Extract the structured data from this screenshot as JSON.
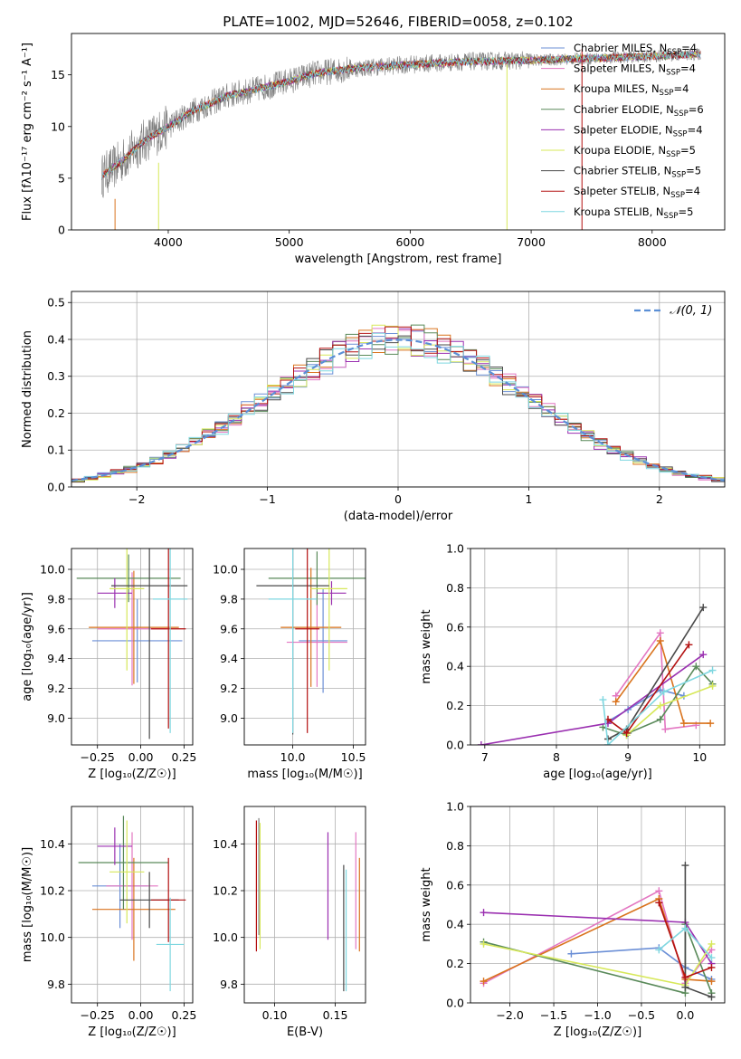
{
  "figure": {
    "title": "PLATE=1002, MJD=52646, FIBERID=0058, z=0.102"
  },
  "chart_data": [
    {
      "id": "spectrum",
      "type": "line",
      "xlabel": "wavelength [Angstrom, rest frame]",
      "ylabel": "Flux [fλ10⁻¹⁷ erg cm⁻² s⁻¹ A⁻¹]",
      "xlim": [
        3200,
        8600
      ],
      "ylim": [
        0,
        19
      ],
      "xticks": [
        4000,
        5000,
        6000,
        7000,
        8000
      ],
      "yticks": [
        0,
        5,
        10,
        15
      ],
      "grid": false,
      "legend_position": "top-right",
      "data_series": {
        "name": "data",
        "color": "#808080"
      },
      "continuum": {
        "x": [
          3450,
          3600,
          3800,
          4000,
          4200,
          4500,
          4800,
          5000,
          5200,
          5500,
          6000,
          6500,
          7000,
          7500,
          8000,
          8400
        ],
        "y": [
          5.2,
          6.5,
          8.6,
          10.0,
          11.5,
          13.0,
          13.8,
          14.4,
          15.1,
          15.6,
          16.0,
          16.3,
          16.4,
          16.6,
          16.8,
          17.0
        ]
      },
      "series": [
        {
          "name": "Chabrier MILES, N",
          "sub": "SSP",
          "suffix": "=4",
          "color": "#6b8fd6"
        },
        {
          "name": "Salpeter MILES, N",
          "sub": "SSP",
          "suffix": "=4",
          "color": "#e377c2"
        },
        {
          "name": "Kroupa MILES, N",
          "sub": "SSP",
          "suffix": "=4",
          "color": "#d9731d"
        },
        {
          "name": "Chabrier ELODIE, N",
          "sub": "SSP",
          "suffix": "=6",
          "color": "#5a8a5a"
        },
        {
          "name": "Salpeter ELODIE, N",
          "sub": "SSP",
          "suffix": "=4",
          "color": "#9a2fb0"
        },
        {
          "name": "Kroupa ELODIE, N",
          "sub": "SSP",
          "suffix": "=5",
          "color": "#d7e85a"
        },
        {
          "name": "Chabrier STELIB, N",
          "sub": "SSP",
          "suffix": "=5",
          "color": "#4a4a4a"
        },
        {
          "name": "Salpeter STELIB, N",
          "sub": "SSP",
          "suffix": "=4",
          "color": "#b31010"
        },
        {
          "name": "Kroupa STELIB, N",
          "sub": "SSP",
          "suffix": "=5",
          "color": "#7fd7e0"
        }
      ],
      "spikes": [
        {
          "x": 3920,
          "y0": 0,
          "y1": 6.5,
          "color": "#d7e85a"
        },
        {
          "x": 6800,
          "y0": 0,
          "y1": 16,
          "color": "#d7e85a"
        },
        {
          "x": 7420,
          "y0": 0,
          "y1": 17.5,
          "color": "#b31010"
        },
        {
          "x": 3560,
          "y0": 0,
          "y1": 3,
          "color": "#d9731d"
        }
      ]
    },
    {
      "id": "residuals",
      "type": "step",
      "xlabel": "(data-model)/error",
      "ylabel": "Normed distribution",
      "xlim": [
        -2.5,
        2.5
      ],
      "ylim": [
        0,
        0.53
      ],
      "xticks": [
        -2,
        -1,
        0,
        1,
        2
      ],
      "yticks": [
        0.0,
        0.1,
        0.2,
        0.3,
        0.4,
        0.5
      ],
      "grid": true,
      "legend_position": "top-right",
      "normal_curve": {
        "label": "𝒩(0, 1)",
        "color": "#5b8fd6"
      },
      "hist_colors": [
        "#6b8fd6",
        "#e377c2",
        "#d9731d",
        "#5a8a5a",
        "#9a2fb0",
        "#d7e85a",
        "#4a4a4a",
        "#b31010",
        "#7fd7e0"
      ],
      "bins": 50
    },
    {
      "id": "age-vs-Z",
      "type": "errorbar",
      "xlabel": "Z [log₁₀(Z/Z☉)]",
      "ylabel": "age  [log₁₀(age/yr)]",
      "xlim": [
        -0.4,
        0.3
      ],
      "ylim": [
        8.82,
        10.14
      ],
      "xticks": [
        -0.25,
        0.0,
        0.25
      ],
      "xticklabels": [
        "−0.25",
        "0.00",
        "0.25"
      ],
      "yticks": [
        9.0,
        9.2,
        9.4,
        9.6,
        9.8,
        10.0
      ],
      "grid": true,
      "points": [
        {
          "x": -0.02,
          "xerr": 0.26,
          "y": 9.52,
          "yerr": 0.28,
          "color": "#6b8fd6"
        },
        {
          "x": -0.05,
          "xerr": 0.2,
          "y": 9.6,
          "yerr": 0.38,
          "color": "#e377c2"
        },
        {
          "x": -0.04,
          "xerr": 0.26,
          "y": 9.61,
          "yerr": 0.38,
          "color": "#d9731d"
        },
        {
          "x": -0.07,
          "xerr": 0.3,
          "y": 9.94,
          "yerr": 0.16,
          "color": "#5a8a5a"
        },
        {
          "x": -0.15,
          "xerr": 0.1,
          "y": 9.84,
          "yerr": 0.1,
          "color": "#9a2fb0"
        },
        {
          "x": -0.08,
          "xerr": 0.1,
          "y": 9.87,
          "yerr": 0.55,
          "color": "#d7e85a"
        },
        {
          "x": 0.05,
          "xerr": 0.22,
          "y": 9.89,
          "yerr": 1.03,
          "color": "#4a4a4a"
        },
        {
          "x": 0.16,
          "xerr": 0.1,
          "y": 9.6,
          "yerr": 0.67,
          "color": "#b31010"
        },
        {
          "x": 0.17,
          "xerr": 0.1,
          "y": 9.8,
          "yerr": 0.9,
          "color": "#7fd7e0"
        }
      ]
    },
    {
      "id": "age-vs-mass",
      "type": "errorbar",
      "xlabel": "mass [log₁₀(M/M☉)]",
      "ylabel": "",
      "xlim": [
        9.6,
        10.6
      ],
      "ylim": [
        8.82,
        10.14
      ],
      "xticks": [
        10.0,
        10.5
      ],
      "xticklabels": [
        "10.0",
        "10.5"
      ],
      "yticks": [
        9.0,
        9.2,
        9.4,
        9.6,
        9.8,
        10.0
      ],
      "grid": true,
      "points": [
        {
          "x": 10.25,
          "xerr": 0.2,
          "y": 9.52,
          "yerr": 0.35,
          "color": "#6b8fd6"
        },
        {
          "x": 10.2,
          "xerr": 0.25,
          "y": 9.51,
          "yerr": 0.3,
          "color": "#e377c2"
        },
        {
          "x": 10.15,
          "xerr": 0.25,
          "y": 9.61,
          "yerr": 0.4,
          "color": "#d9731d"
        },
        {
          "x": 10.2,
          "xerr": 0.4,
          "y": 9.94,
          "yerr": 0.18,
          "color": "#5a8a5a"
        },
        {
          "x": 10.32,
          "xerr": 0.12,
          "y": 9.84,
          "yerr": 0.08,
          "color": "#9a2fb0"
        },
        {
          "x": 10.3,
          "xerr": 0.15,
          "y": 9.87,
          "yerr": 0.55,
          "color": "#d7e85a"
        },
        {
          "x": 10.0,
          "xerr": 0.3,
          "y": 9.89,
          "yerr": 1.0,
          "color": "#4a4a4a"
        },
        {
          "x": 10.12,
          "xerr": 0.1,
          "y": 9.6,
          "yerr": 0.7,
          "color": "#b31010"
        },
        {
          "x": 10.0,
          "xerr": 0.2,
          "y": 9.8,
          "yerr": 0.9,
          "color": "#7fd7e0"
        }
      ]
    },
    {
      "id": "weight-vs-age",
      "type": "line",
      "xlabel": "age  [log₁₀(age/yr)]",
      "ylabel": "mass weight",
      "xlim": [
        6.8,
        10.35
      ],
      "ylim": [
        0,
        1.0
      ],
      "xticks": [
        7,
        8,
        9,
        10
      ],
      "yticks": [
        0.0,
        0.2,
        0.4,
        0.6,
        0.8,
        1.0
      ],
      "grid": true,
      "series": [
        {
          "color": "#6b8fd6",
          "x": [
            8.72,
            9.0,
            9.45,
            9.78
          ],
          "y": [
            0.12,
            0.18,
            0.28,
            0.25
          ]
        },
        {
          "color": "#e377c2",
          "x": [
            8.83,
            9.45,
            9.52,
            9.95
          ],
          "y": [
            0.25,
            0.57,
            0.08,
            0.1
          ]
        },
        {
          "color": "#d9731d",
          "x": [
            8.83,
            9.45,
            9.78,
            10.15
          ],
          "y": [
            0.22,
            0.53,
            0.11,
            0.11
          ]
        },
        {
          "color": "#5a8a5a",
          "x": [
            8.65,
            8.98,
            9.0,
            9.45,
            9.95,
            10.18
          ],
          "y": [
            0.09,
            0.05,
            0.06,
            0.13,
            0.4,
            0.31
          ]
        },
        {
          "color": "#9a2fb0",
          "x": [
            6.95,
            8.72,
            10.05
          ],
          "y": [
            0.0,
            0.11,
            0.46
          ]
        },
        {
          "color": "#d7e85a",
          "x": [
            8.98,
            9.45,
            10.18
          ],
          "y": [
            0.05,
            0.2,
            0.3
          ]
        },
        {
          "color": "#4a4a4a",
          "x": [
            8.72,
            8.98,
            10.05
          ],
          "y": [
            0.03,
            0.08,
            0.7
          ]
        },
        {
          "color": "#b31010",
          "x": [
            8.72,
            8.98,
            9.85
          ],
          "y": [
            0.13,
            0.06,
            0.51
          ]
        },
        {
          "color": "#7fd7e0",
          "x": [
            8.65,
            8.72,
            9.5,
            10.18
          ],
          "y": [
            0.23,
            0.0,
            0.27,
            0.38
          ]
        }
      ]
    },
    {
      "id": "mass-vs-Z",
      "type": "errorbar",
      "xlabel": "Z [log₁₀(Z/Z☉)]",
      "ylabel": "mass [log₁₀(M/M☉)]",
      "xlim": [
        -0.4,
        0.3
      ],
      "ylim": [
        9.72,
        10.56
      ],
      "xticks": [
        -0.25,
        0.0,
        0.25
      ],
      "xticklabels": [
        "−0.25",
        "0.00",
        "0.25"
      ],
      "yticks": [
        9.8,
        10.0,
        10.2,
        10.4
      ],
      "grid": true,
      "points": [
        {
          "x": -0.12,
          "xerr": 0.16,
          "y": 10.22,
          "yerr": 0.18,
          "color": "#6b8fd6"
        },
        {
          "x": -0.05,
          "xerr": 0.15,
          "y": 10.22,
          "yerr": 0.23,
          "color": "#e377c2"
        },
        {
          "x": -0.04,
          "xerr": 0.24,
          "y": 10.12,
          "yerr": 0.22,
          "color": "#d9731d"
        },
        {
          "x": -0.1,
          "xerr": 0.26,
          "y": 10.32,
          "yerr": 0.2,
          "color": "#5a8a5a"
        },
        {
          "x": -0.15,
          "xerr": 0.1,
          "y": 10.39,
          "yerr": 0.08,
          "color": "#9a2fb0"
        },
        {
          "x": -0.08,
          "xerr": 0.1,
          "y": 10.28,
          "yerr": 0.22,
          "color": "#d7e85a"
        },
        {
          "x": 0.05,
          "xerr": 0.17,
          "y": 10.16,
          "yerr": 0.12,
          "color": "#4a4a4a"
        },
        {
          "x": 0.16,
          "xerr": 0.1,
          "y": 10.16,
          "yerr": 0.18,
          "color": "#b31010"
        },
        {
          "x": 0.17,
          "xerr": 0.08,
          "y": 9.97,
          "yerr": 0.2,
          "color": "#7fd7e0"
        }
      ]
    },
    {
      "id": "mass-vs-EBV",
      "type": "errorbar",
      "xlabel": "E(B-V)",
      "ylabel": "",
      "xlim": [
        0.075,
        0.175
      ],
      "ylim": [
        9.72,
        10.56
      ],
      "xticks": [
        0.1,
        0.15
      ],
      "xticklabels": [
        "0.10",
        "0.15"
      ],
      "yticks": [
        9.8,
        10.0,
        10.2,
        10.4
      ],
      "grid": true,
      "points": [
        {
          "x": 0.085,
          "xerr": 0.0,
          "y": 10.22,
          "yerr": 0.28,
          "color": "#b31010"
        },
        {
          "x": 0.087,
          "xerr": 0.0,
          "y": 10.26,
          "yerr": 0.25,
          "color": "#808080"
        },
        {
          "x": 0.088,
          "xerr": 0.0,
          "y": 10.22,
          "yerr": 0.27,
          "color": "#d7e85a"
        },
        {
          "x": 0.144,
          "xerr": 0.0,
          "y": 10.22,
          "yerr": 0.23,
          "color": "#9a2fb0"
        },
        {
          "x": 0.157,
          "xerr": 0.0,
          "y": 10.04,
          "yerr": 0.27,
          "color": "#4a4a4a"
        },
        {
          "x": 0.159,
          "xerr": 0.0,
          "y": 10.03,
          "yerr": 0.26,
          "color": "#7fd7e0"
        },
        {
          "x": 0.167,
          "xerr": 0.0,
          "y": 10.2,
          "yerr": 0.25,
          "color": "#e377c2"
        },
        {
          "x": 0.17,
          "xerr": 0.0,
          "y": 10.14,
          "yerr": 0.2,
          "color": "#d9731d"
        }
      ]
    },
    {
      "id": "weight-vs-Z",
      "type": "line",
      "xlabel": "Z [log₁₀(Z/Z☉)]",
      "ylabel": "mass weight",
      "xlim": [
        -2.45,
        0.45
      ],
      "ylim": [
        0,
        1.0
      ],
      "xticks": [
        -2.0,
        -1.5,
        -1.0,
        -0.5,
        0.0
      ],
      "xticklabels": [
        "−2.0",
        "−1.5",
        "−1.0",
        "−0.5",
        "0.0"
      ],
      "yticks": [
        0.0,
        0.2,
        0.4,
        0.6,
        0.8,
        1.0
      ],
      "grid": true,
      "series": [
        {
          "color": "#6b8fd6",
          "x": [
            -1.3,
            -0.3,
            0.0,
            0.3
          ],
          "y": [
            0.25,
            0.28,
            0.18,
            0.12
          ]
        },
        {
          "color": "#e377c2",
          "x": [
            -2.3,
            -0.3,
            0.0,
            0.3
          ],
          "y": [
            0.1,
            0.57,
            0.1,
            0.27
          ]
        },
        {
          "color": "#d9731d",
          "x": [
            -2.3,
            -0.3,
            0.0,
            0.3
          ],
          "y": [
            0.11,
            0.53,
            0.12,
            0.11
          ]
        },
        {
          "color": "#5a8a5a",
          "x": [
            -2.3,
            -0.0,
            0.0,
            0.3
          ],
          "y": [
            0.31,
            0.05,
            0.4,
            0.05
          ]
        },
        {
          "color": "#9a2fb0",
          "x": [
            -2.3,
            0.0,
            0.3
          ],
          "y": [
            0.46,
            0.41,
            0.2
          ]
        },
        {
          "color": "#d7e85a",
          "x": [
            -2.3,
            0.0,
            0.3
          ],
          "y": [
            0.3,
            0.09,
            0.3
          ]
        },
        {
          "color": "#4a4a4a",
          "x": [
            0.0,
            0.0,
            0.3
          ],
          "y": [
            0.7,
            0.08,
            0.03
          ]
        },
        {
          "color": "#b31010",
          "x": [
            -0.3,
            0.0,
            0.3
          ],
          "y": [
            0.51,
            0.13,
            0.18
          ]
        },
        {
          "color": "#7fd7e0",
          "x": [
            -0.3,
            0.0,
            0.3
          ],
          "y": [
            0.27,
            0.38,
            0.23
          ]
        }
      ]
    }
  ]
}
